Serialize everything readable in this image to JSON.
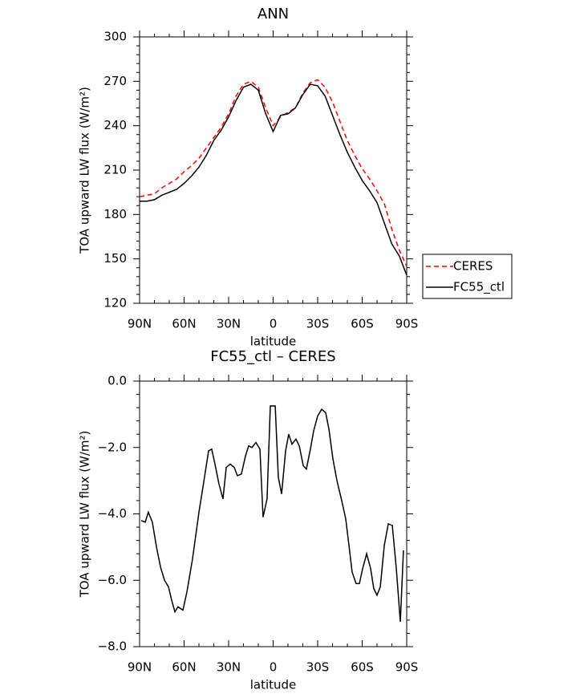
{
  "chart_data": [
    {
      "type": "line",
      "title": "ANN",
      "x_label": "latitude",
      "y_label": "TOA upward LW flux (W/m²)",
      "x": [
        90,
        85,
        80,
        75,
        70,
        65,
        60,
        55,
        50,
        45,
        40,
        35,
        30,
        25,
        20,
        15,
        10,
        5,
        0,
        -5,
        -10,
        -15,
        -20,
        -25,
        -30,
        -35,
        -40,
        -45,
        -50,
        -55,
        -60,
        -65,
        -70,
        -75,
        -80,
        -85,
        -90
      ],
      "series": [
        {
          "name": "CERES",
          "color": "#ff0000",
          "linestyle": "dashed",
          "values": [
            192,
            193,
            194,
            198,
            201,
            204,
            209,
            213,
            218,
            225,
            232,
            239,
            248,
            260,
            268,
            270,
            266,
            252,
            240,
            246,
            249,
            252,
            262,
            269,
            271,
            266,
            256,
            243,
            230,
            220,
            211,
            204,
            196,
            187,
            170,
            156,
            145
          ]
        },
        {
          "name": "FC55_ctl",
          "color": "#000000",
          "linestyle": "solid",
          "values": [
            189,
            189,
            190,
            193,
            195,
            197,
            201,
            206,
            212,
            220,
            230,
            237,
            246,
            257,
            266,
            268,
            264,
            248,
            236,
            247,
            248,
            252,
            261,
            268,
            267,
            260,
            247,
            234,
            222,
            212,
            203,
            196,
            188,
            174,
            160,
            152,
            139
          ]
        }
      ],
      "xlim": [
        90,
        -90
      ],
      "xticks": [
        {
          "value": 90,
          "label": "90N"
        },
        {
          "value": 60,
          "label": "60N"
        },
        {
          "value": 30,
          "label": "30N"
        },
        0,
        {
          "value": -30,
          "label": "30S"
        },
        {
          "value": -60,
          "label": "60S"
        },
        {
          "value": -90,
          "label": "90S"
        }
      ],
      "ylim": [
        120,
        300
      ],
      "yticks": [
        120,
        150,
        180,
        210,
        240,
        270,
        300
      ],
      "legend": "right"
    },
    {
      "type": "line",
      "title": "FC55_ctl – CERES",
      "x_label": "latitude",
      "y_label": "TOA upward LW flux (W/m²)",
      "x": [
        88.9,
        86.2,
        84.1,
        81.4,
        78.6,
        75.9,
        73.2,
        70.5,
        68.4,
        66.2,
        64.1,
        60.8,
        58.1,
        54.3,
        50,
        46.8,
        43.5,
        41.4,
        39.2,
        36.5,
        33.8,
        31.6,
        28.9,
        26.2,
        24.1,
        21.4,
        18.6,
        16.5,
        14.3,
        11.6,
        8.9,
        6.8,
        4.1,
        1.9,
        -1.4,
        -3.5,
        -5.7,
        -8.4,
        -10.5,
        -12.7,
        -15.4,
        -17.6,
        -20.3,
        -22.4,
        -25.1,
        -27.3,
        -30,
        -32.7,
        -35.4,
        -37.6,
        -40.3,
        -43,
        -46.2,
        -48.9,
        -51.1,
        -53.2,
        -55.9,
        -58.1,
        -60.3,
        -63,
        -65.7,
        -67.8,
        -70,
        -72.2,
        -74.9,
        -77.6,
        -80.3,
        -83,
        -85.7,
        -87.8
      ],
      "series": [
        {
          "name": "FC55_ctl – CERES",
          "color": "#000000",
          "linestyle": "solid",
          "values": [
            -4.2,
            -4.25,
            -3.95,
            -4.25,
            -5.0,
            -5.6,
            -6.0,
            -6.2,
            -6.6,
            -6.95,
            -6.8,
            -6.9,
            -6.35,
            -5.35,
            -3.95,
            -3.05,
            -2.1,
            -2.05,
            -2.5,
            -3.1,
            -3.55,
            -2.6,
            -2.5,
            -2.6,
            -2.85,
            -2.8,
            -2.25,
            -1.95,
            -2.0,
            -1.85,
            -2.05,
            -4.1,
            -3.55,
            -0.75,
            -0.75,
            -2.9,
            -3.4,
            -2.1,
            -1.6,
            -1.9,
            -1.75,
            -1.95,
            -2.55,
            -2.65,
            -2.05,
            -1.5,
            -1.05,
            -0.85,
            -0.95,
            -1.45,
            -2.35,
            -3.0,
            -3.6,
            -4.15,
            -4.95,
            -5.75,
            -6.1,
            -6.1,
            -5.65,
            -5.2,
            -5.65,
            -6.25,
            -6.45,
            -6.2,
            -4.95,
            -4.3,
            -4.35,
            -5.65,
            -7.25,
            -5.1
          ]
        }
      ],
      "xlim": [
        90,
        -90
      ],
      "xticks": [
        {
          "value": 90,
          "label": "90N"
        },
        {
          "value": 60,
          "label": "60N"
        },
        {
          "value": 30,
          "label": "30N"
        },
        0,
        {
          "value": -30,
          "label": "30S"
        },
        {
          "value": -60,
          "label": "60S"
        },
        {
          "value": -90,
          "label": "90S"
        }
      ],
      "ylim": [
        -8,
        0
      ],
      "yticks": [
        {
          "value": -8,
          "label": "−8.0"
        },
        {
          "value": -6,
          "label": "−6.0"
        },
        {
          "value": -4,
          "label": "−4.0"
        },
        {
          "value": -2,
          "label": "−2.0"
        },
        {
          "value": 0,
          "label": "0.0"
        }
      ]
    }
  ]
}
